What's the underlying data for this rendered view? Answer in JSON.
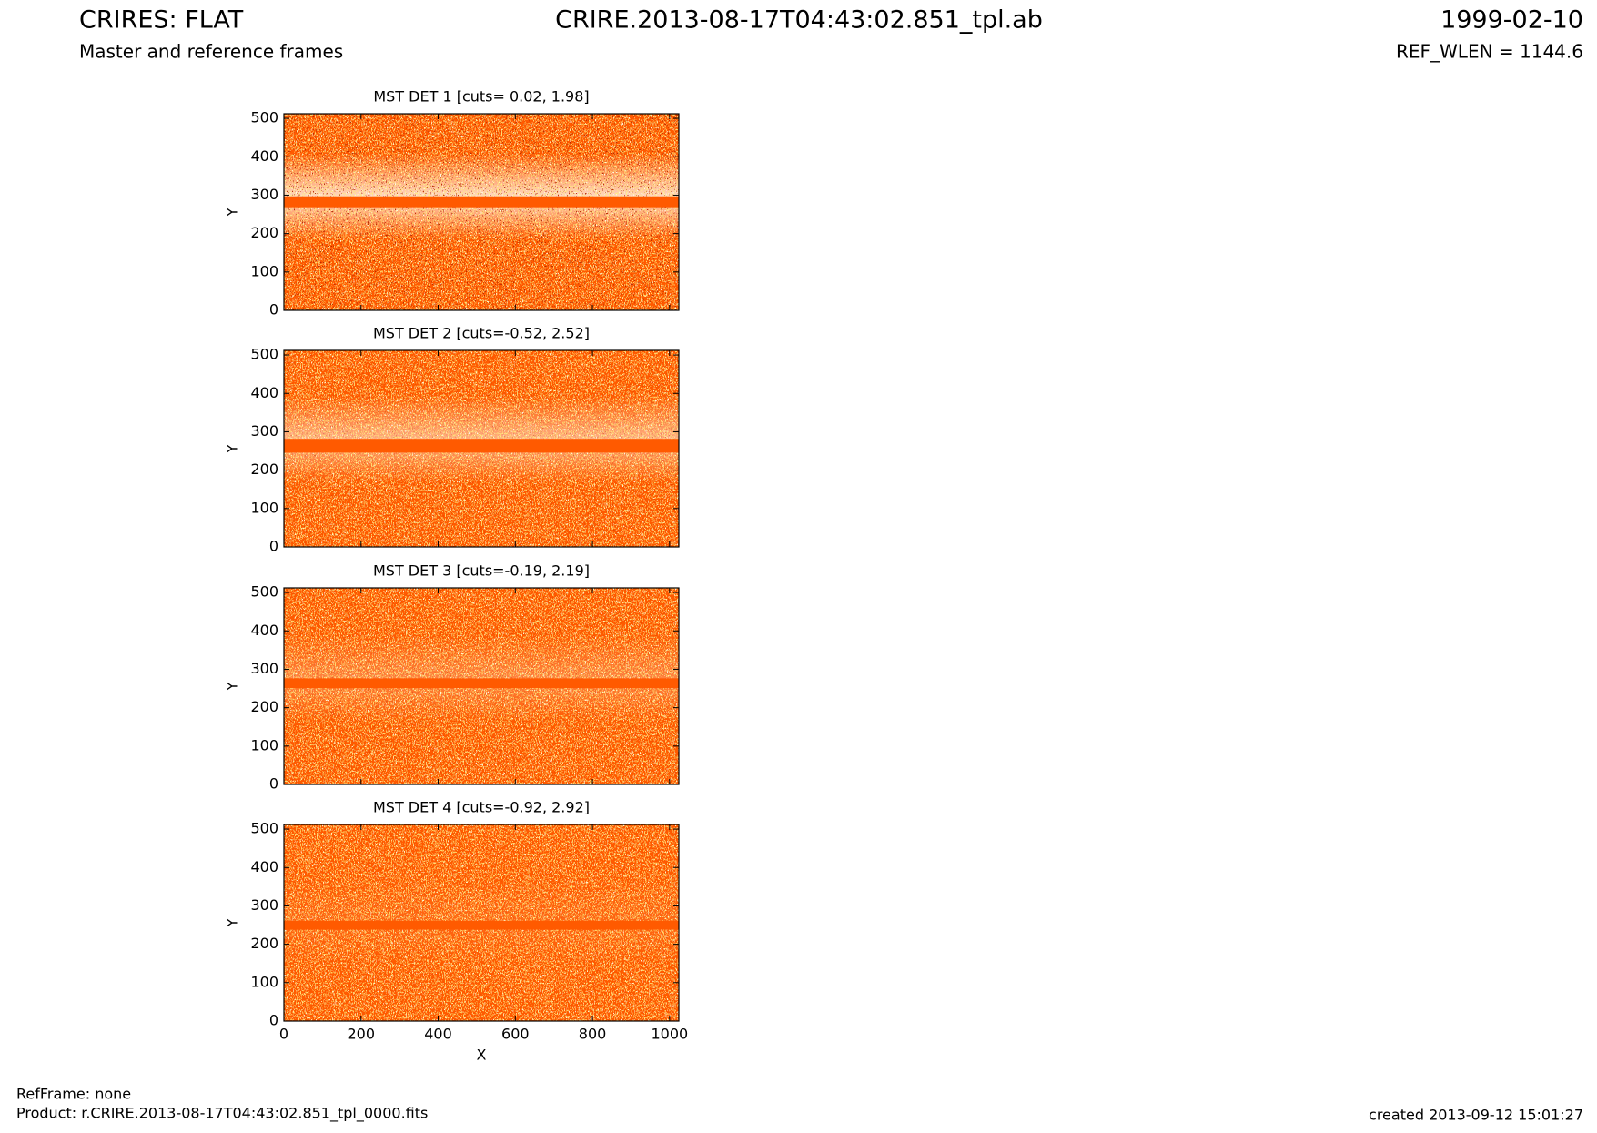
{
  "header": {
    "title": "CRIRES: FLAT",
    "subtitle": "Master and reference frames",
    "file": "CRIRE.2013-08-17T04:43:02.851_tpl.ab",
    "date": "1999-02-10",
    "ref_wlen": "REF_WLEN = 1144.6"
  },
  "footer": {
    "ref_frame": "RefFrame: none",
    "product": "Product: r.CRIRE.2013-08-17T04:43:02.851_tpl_0000.fits",
    "created": "created 2013-09-12 15:01:27"
  },
  "chart_data": [
    {
      "type": "heatmap",
      "title": "MST DET 1 [cuts= 0.02, 1.98]",
      "ylabel": "Y",
      "xlim": [
        0,
        1024
      ],
      "ylim": [
        0,
        512
      ],
      "xticks": [
        0,
        200,
        400,
        600,
        800,
        1000
      ],
      "yticks": [
        0,
        100,
        200,
        300,
        400,
        500
      ]
    },
    {
      "type": "heatmap",
      "title": "MST DET 2 [cuts=-0.52, 2.52]",
      "ylabel": "Y",
      "xlim": [
        0,
        1024
      ],
      "ylim": [
        0,
        512
      ],
      "xticks": [
        0,
        200,
        400,
        600,
        800,
        1000
      ],
      "yticks": [
        0,
        100,
        200,
        300,
        400,
        500
      ]
    },
    {
      "type": "heatmap",
      "title": "MST DET 3 [cuts=-0.19, 2.19]",
      "ylabel": "Y",
      "xlim": [
        0,
        1024
      ],
      "ylim": [
        0,
        512
      ],
      "xticks": [
        0,
        200,
        400,
        600,
        800,
        1000
      ],
      "yticks": [
        0,
        100,
        200,
        300,
        400,
        500
      ]
    },
    {
      "type": "heatmap",
      "title": "MST DET 4 [cuts=-0.92, 2.92]",
      "ylabel": "Y",
      "xlabel": "X",
      "xlim": [
        0,
        1024
      ],
      "ylim": [
        0,
        512
      ],
      "xticks": [
        0,
        200,
        400,
        600,
        800,
        1000
      ],
      "yticks": [
        0,
        100,
        200,
        300,
        400,
        500
      ]
    }
  ]
}
